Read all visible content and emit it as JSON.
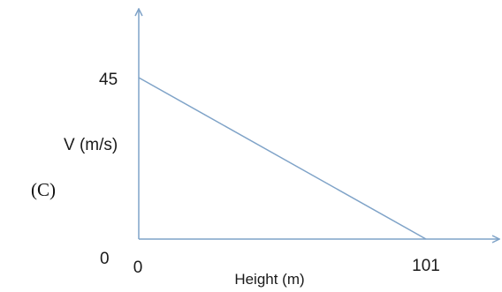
{
  "option_label": "(C)",
  "colors": {
    "axis": "#7fa3c8",
    "line": "#7fa3c8",
    "text": "#1a1a1a"
  },
  "chart_data": {
    "type": "line",
    "title": "",
    "xlabel": "Height (m)",
    "ylabel": "V (m/s)",
    "x_ticks": [
      "0",
      "101"
    ],
    "y_ticks": [
      "0",
      "45"
    ],
    "xlim": [
      0,
      101
    ],
    "ylim": [
      0,
      45
    ],
    "grid": false,
    "series": [
      {
        "x": [
          0,
          101
        ],
        "y": [
          45,
          0
        ]
      }
    ]
  }
}
